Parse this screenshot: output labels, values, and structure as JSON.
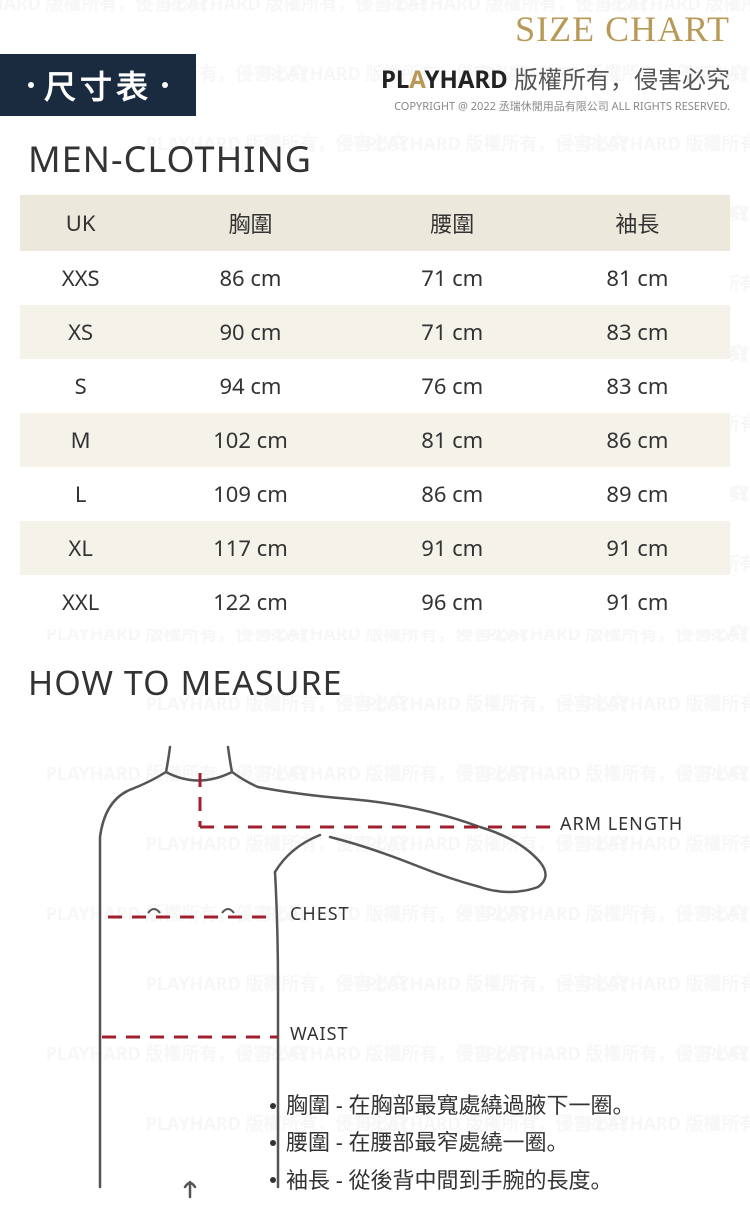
{
  "header": {
    "size_chart_title": "SIZE CHART",
    "label_bar_text": "尺寸表",
    "brand_play": "PL",
    "brand_a": "A",
    "brand_yhard": "YHARD",
    "brand_suffix": " 版權所有，侵害必究",
    "copyright": "COPYRIGHT @ 2022 丞瑞休閒用品有限公司 ALL RIGHTS RESERVED."
  },
  "section1_title": "MEN-CLOTHING",
  "table": {
    "columns": [
      "UK",
      "胸圍",
      "腰圍",
      "袖長"
    ],
    "rows": [
      [
        "XXS",
        "86 cm",
        "71 cm",
        "81 cm"
      ],
      [
        "XS",
        "90 cm",
        "71 cm",
        "83 cm"
      ],
      [
        "S",
        "94 cm",
        "76 cm",
        "83 cm"
      ],
      [
        "M",
        "102 cm",
        "81 cm",
        "86 cm"
      ],
      [
        "L",
        "109 cm",
        "86 cm",
        "89 cm"
      ],
      [
        "XL",
        "117 cm",
        "91 cm",
        "91 cm"
      ],
      [
        "XXL",
        "122 cm",
        "96 cm",
        "91 cm"
      ]
    ],
    "header_bg": "#ede8dc",
    "row_alt_bg": "#f5f2ea",
    "row_bg": "#ffffff",
    "font_size": 22,
    "text_color": "#333333"
  },
  "section2_title": "HOW TO MEASURE",
  "measure": {
    "label_arm": "ARM LENGTH",
    "label_chest": "CHEST",
    "label_waist": "WAIST",
    "desc": [
      "胸圍 - 在胸部最寬處繞過腋下一圈。",
      "腰圍 - 在腰部最窄處繞一圈。",
      "袖長 - 從後背中間到手腕的長度。"
    ],
    "dash_color": "#a02030",
    "outline_color": "#555555"
  },
  "colors": {
    "accent_gold": "#b89956",
    "navy": "#1a2a3f",
    "text": "#333333"
  },
  "watermark_text": "PLAYHARD 版權所有，侵害必究"
}
